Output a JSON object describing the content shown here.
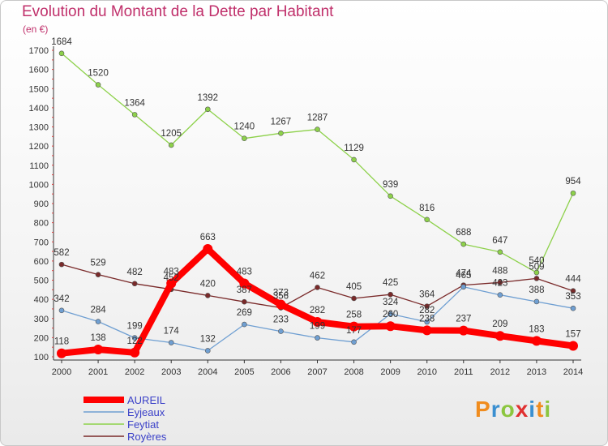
{
  "title": "Evolution du Montant de la Dette par Habitant",
  "unit_label": "(en €)",
  "logo": {
    "text": "Proxiti",
    "letters": [
      {
        "ch": "P",
        "color": "#f08c1e"
      },
      {
        "ch": "r",
        "color": "#3a8fd0"
      },
      {
        "ch": "o",
        "color": "#8cc63f"
      },
      {
        "ch": "x",
        "color": "#e03030"
      },
      {
        "ch": "i",
        "color": "#3a8fd0"
      },
      {
        "ch": "t",
        "color": "#f08c1e"
      },
      {
        "ch": "i",
        "color": "#8cc63f"
      }
    ]
  },
  "chart_data": {
    "type": "line",
    "title": "Evolution du Montant de la Dette par Habitant",
    "ylabel": "(en €)",
    "xlabel": "",
    "x": [
      2000,
      2001,
      2002,
      2003,
      2004,
      2005,
      2006,
      2007,
      2008,
      2009,
      2010,
      2011,
      2012,
      2013,
      2014
    ],
    "ylim": [
      100,
      1700
    ],
    "yticks": [
      100,
      200,
      300,
      400,
      500,
      600,
      700,
      800,
      900,
      1000,
      1100,
      1200,
      1300,
      1400,
      1500,
      1600,
      1700
    ],
    "grid": false,
    "legend_position": "bottom-left",
    "series": [
      {
        "name": "Feytiat",
        "color": "#8dd14a",
        "width": 1.3,
        "values": [
          1684,
          1520,
          1364,
          1205,
          1392,
          1240,
          1267,
          1287,
          1129,
          939,
          816,
          688,
          647,
          540,
          954
        ]
      },
      {
        "name": "Royères",
        "color": "#7a2a2a",
        "width": 1.3,
        "values": [
          582,
          529,
          482,
          452,
          420,
          387,
          356,
          462,
          405,
          425,
          364,
          474,
          488,
          509,
          444
        ]
      },
      {
        "name": "Eyjeaux",
        "color": "#6f9fd2",
        "width": 1.3,
        "values": [
          342,
          284,
          199,
          174,
          132,
          269,
          233,
          199,
          177,
          324,
          282,
          465,
          423,
          388,
          353
        ]
      },
      {
        "name": "AUREIL",
        "color": "#ff0000",
        "width": 8,
        "values": [
          118,
          138,
          122,
          483,
          663,
          483,
          373,
          282,
          258,
          260,
          238,
          237,
          209,
          183,
          157
        ]
      }
    ],
    "data_labels": [
      {
        "series": "Feytiat",
        "labels": [
          "1684",
          "1520",
          "1364",
          "1205",
          "1392",
          "1240",
          "1267",
          "1287",
          "1129",
          "939",
          "816",
          "688",
          "647",
          "540",
          "954"
        ]
      },
      {
        "series": "Royères",
        "labels": [
          "582",
          "529",
          "482",
          "452",
          "420",
          "387",
          "356",
          "462",
          "405",
          "425",
          "364",
          "474",
          "488",
          "509",
          "444"
        ]
      },
      {
        "series": "Eyjeaux",
        "labels": [
          "342",
          "284",
          "199",
          "174",
          "132",
          "269",
          "233",
          "199",
          "177",
          "324",
          "282",
          "465",
          "423",
          "388",
          "353"
        ]
      },
      {
        "series": "AUREIL",
        "labels": [
          "118",
          "138",
          "122",
          "483",
          "663",
          "483",
          "373",
          "282",
          "258",
          "260",
          "238",
          "237",
          "209",
          "183",
          "157"
        ]
      }
    ],
    "legend": [
      {
        "name": "AUREIL",
        "color": "#ff0000",
        "width": 8
      },
      {
        "name": "Eyjeaux",
        "color": "#6f9fd2",
        "width": 1.5
      },
      {
        "name": "Feytiat",
        "color": "#8dd14a",
        "width": 1.5
      },
      {
        "name": "Royères",
        "color": "#7a2a2a",
        "width": 1.5
      }
    ]
  }
}
